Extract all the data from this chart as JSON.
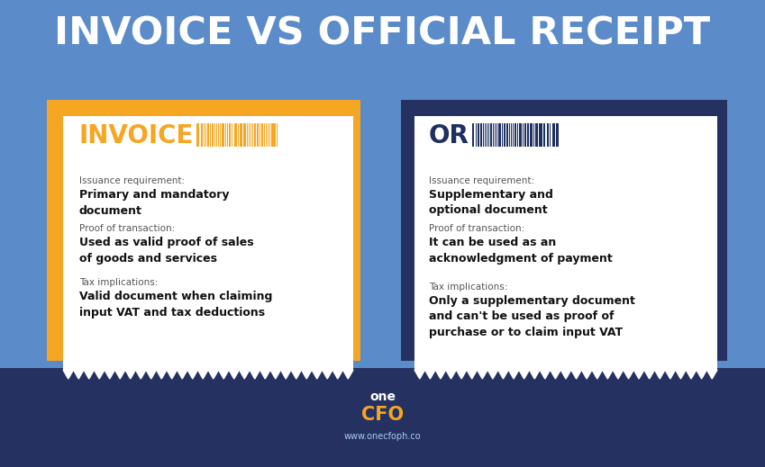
{
  "title": "INVOICE VS OFFICIAL RECEIPT",
  "bg_color": "#5b8bc9",
  "bg_dark_color": "#253261",
  "title_color": "#ffffff",
  "left_accent_color": "#f5a623",
  "right_accent_color": "#253261",
  "card_color": "#ffffff",
  "left_header": "INVOICE",
  "left_header_color": "#f5a623",
  "right_header": "OR",
  "right_header_color": "#1e3060",
  "left_items": [
    {
      "label": "Issuance requirement:",
      "value": "Primary and mandatory\ndocument"
    },
    {
      "label": "Proof of transaction:",
      "value": "Used as valid proof of sales\nof goods and services"
    },
    {
      "label": "Tax implications:",
      "value": "Valid document when claiming\ninput VAT and tax deductions"
    }
  ],
  "right_items": [
    {
      "label": "Issuance requirement:",
      "value": "Supplementary and\noptional document"
    },
    {
      "label": "Proof of transaction:",
      "value": "It can be used as an\nacknowledgment of payment"
    },
    {
      "label": "Tax implications:",
      "value": "Only a supplementary document\nand can't be used as proof of\npurchase or to claim input VAT"
    }
  ],
  "footer_one": "one",
  "footer_cfo": "CFO",
  "footer_url": "www.onecfoph.co",
  "footer_one_color": "#ffffff",
  "footer_cfo_color": "#f5a623",
  "label_color": "#555555",
  "value_color": "#111111",
  "wave_color_light": "#c8d8f0"
}
